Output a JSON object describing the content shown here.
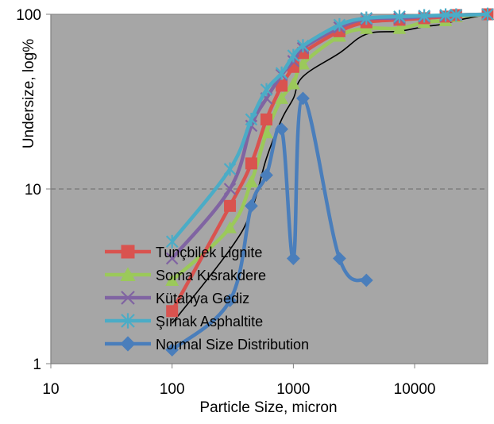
{
  "chart_data": {
    "type": "scatter",
    "xlabel": "Particle Size, micron",
    "ylabel": "Undersize, log%",
    "x_scale": "log",
    "y_scale": "log",
    "xlim": [
      10,
      40000
    ],
    "ylim": [
      1,
      100
    ],
    "x_ticks": [
      10,
      100,
      1000,
      10000
    ],
    "x_tick_labels": [
      "10",
      "100",
      "1000",
      "10000"
    ],
    "y_ticks": [
      1,
      10,
      100
    ],
    "y_tick_labels": [
      "1",
      "10",
      "100"
    ],
    "grid": "horizontal",
    "plot_background": "#a6a6a6",
    "legend_position": "bottom-left inside plot",
    "series": [
      {
        "name": "Tunçbilek Lignite",
        "color": "#d9534f",
        "marker": "square",
        "x": [
          100,
          300,
          450,
          600,
          800,
          1000,
          1200,
          2400,
          4000,
          7500,
          12000,
          18000,
          22000,
          40000
        ],
        "y": [
          2,
          8,
          14,
          25,
          39,
          50,
          60,
          80,
          90,
          93,
          95,
          97,
          99,
          100
        ]
      },
      {
        "name": "Soma Kısrakdere",
        "color": "#9bc95a",
        "marker": "triangle",
        "x": [
          100,
          300,
          450,
          600,
          800,
          1000,
          1200,
          2400,
          4000,
          7500,
          12000,
          18000,
          22000,
          40000
        ],
        "y": [
          3,
          6,
          11,
          21,
          33,
          40,
          52,
          75,
          83,
          83,
          90,
          92,
          97,
          100
        ]
      },
      {
        "name": "Kütahya Gediz",
        "color": "#8064a2",
        "marker": "x",
        "x": [
          100,
          300,
          450,
          600,
          800,
          1000,
          1200,
          2400,
          4000,
          7500,
          12000,
          18000,
          22000,
          40000
        ],
        "y": [
          4,
          10,
          23,
          33,
          45,
          54,
          64,
          84,
          94,
          95,
          97,
          98,
          99,
          100
        ]
      },
      {
        "name": "Şırnak Asphaltite",
        "color": "#4bacc6",
        "marker": "star",
        "x": [
          100,
          300,
          450,
          600,
          800,
          1000,
          1200,
          2400,
          4000,
          7500,
          12000,
          18000,
          22000,
          40000
        ],
        "y": [
          5,
          13,
          25,
          37,
          46,
          58,
          66,
          87,
          95,
          97,
          98,
          99,
          99,
          100
        ]
      },
      {
        "name": "Normal Size Distribution",
        "color": "#4a7ebb",
        "marker": "diamond",
        "x": [
          100,
          300,
          450,
          600,
          800,
          1000,
          1200,
          2400,
          4000
        ],
        "y": [
          1.2,
          2.3,
          8,
          12,
          22,
          4,
          33,
          4,
          3
        ]
      },
      {
        "name": "",
        "color": "#000000",
        "marker": "none",
        "x": [
          100,
          300,
          450,
          600,
          800,
          1000,
          1200,
          2400,
          4000,
          7500,
          12000,
          18000,
          22000,
          40000
        ],
        "y": [
          1.7,
          4.5,
          7.5,
          15,
          25,
          33,
          44,
          60,
          77,
          80,
          85,
          88,
          92,
          100
        ]
      }
    ]
  }
}
